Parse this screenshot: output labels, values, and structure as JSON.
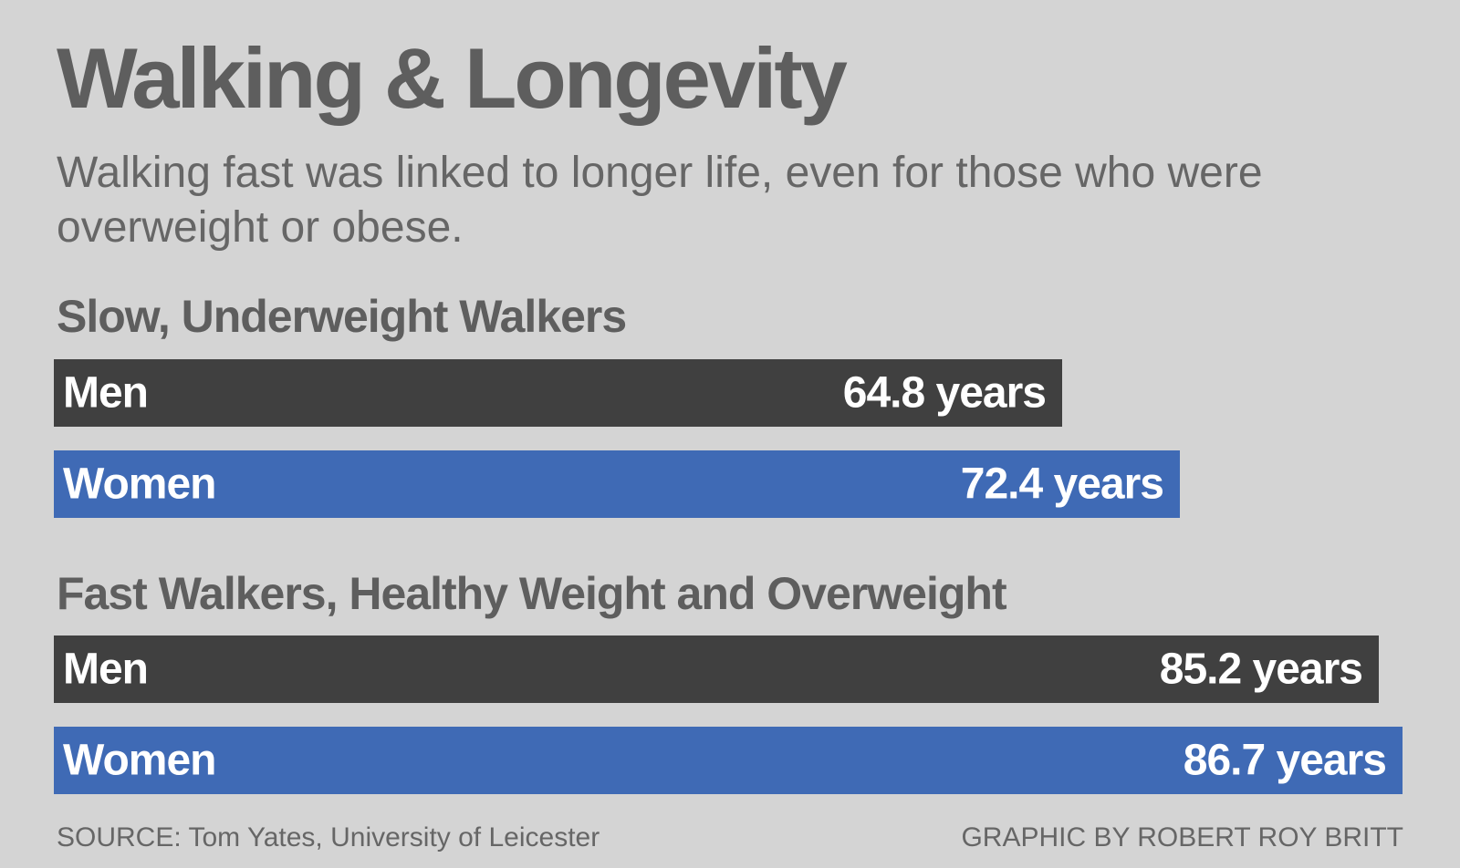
{
  "title": "Walking & Longevity",
  "subtitle": "Walking fast was linked to longer life, even for those who were overweight or obese.",
  "source": "SOURCE: Tom Yates, University of Leicester",
  "credit": "GRAPHIC BY ROBERT ROY BRITT",
  "colors": {
    "men": "#404040",
    "women": "#3f6ab5",
    "background": "#d4d4d4"
  },
  "chart_data": {
    "type": "bar",
    "orientation": "horizontal",
    "unit": "years",
    "groups": [
      {
        "name": "Slow, Underweight Walkers",
        "bars": [
          {
            "category": "Men",
            "value": 64.8,
            "label": "64.8 years"
          },
          {
            "category": "Women",
            "value": 72.4,
            "label": "72.4 years"
          }
        ]
      },
      {
        "name": "Fast Walkers, Healthy Weight and Overweight",
        "bars": [
          {
            "category": "Men",
            "value": 85.2,
            "label": "85.2 years"
          },
          {
            "category": "Women",
            "value": 86.7,
            "label": "86.7 years"
          }
        ]
      }
    ]
  }
}
